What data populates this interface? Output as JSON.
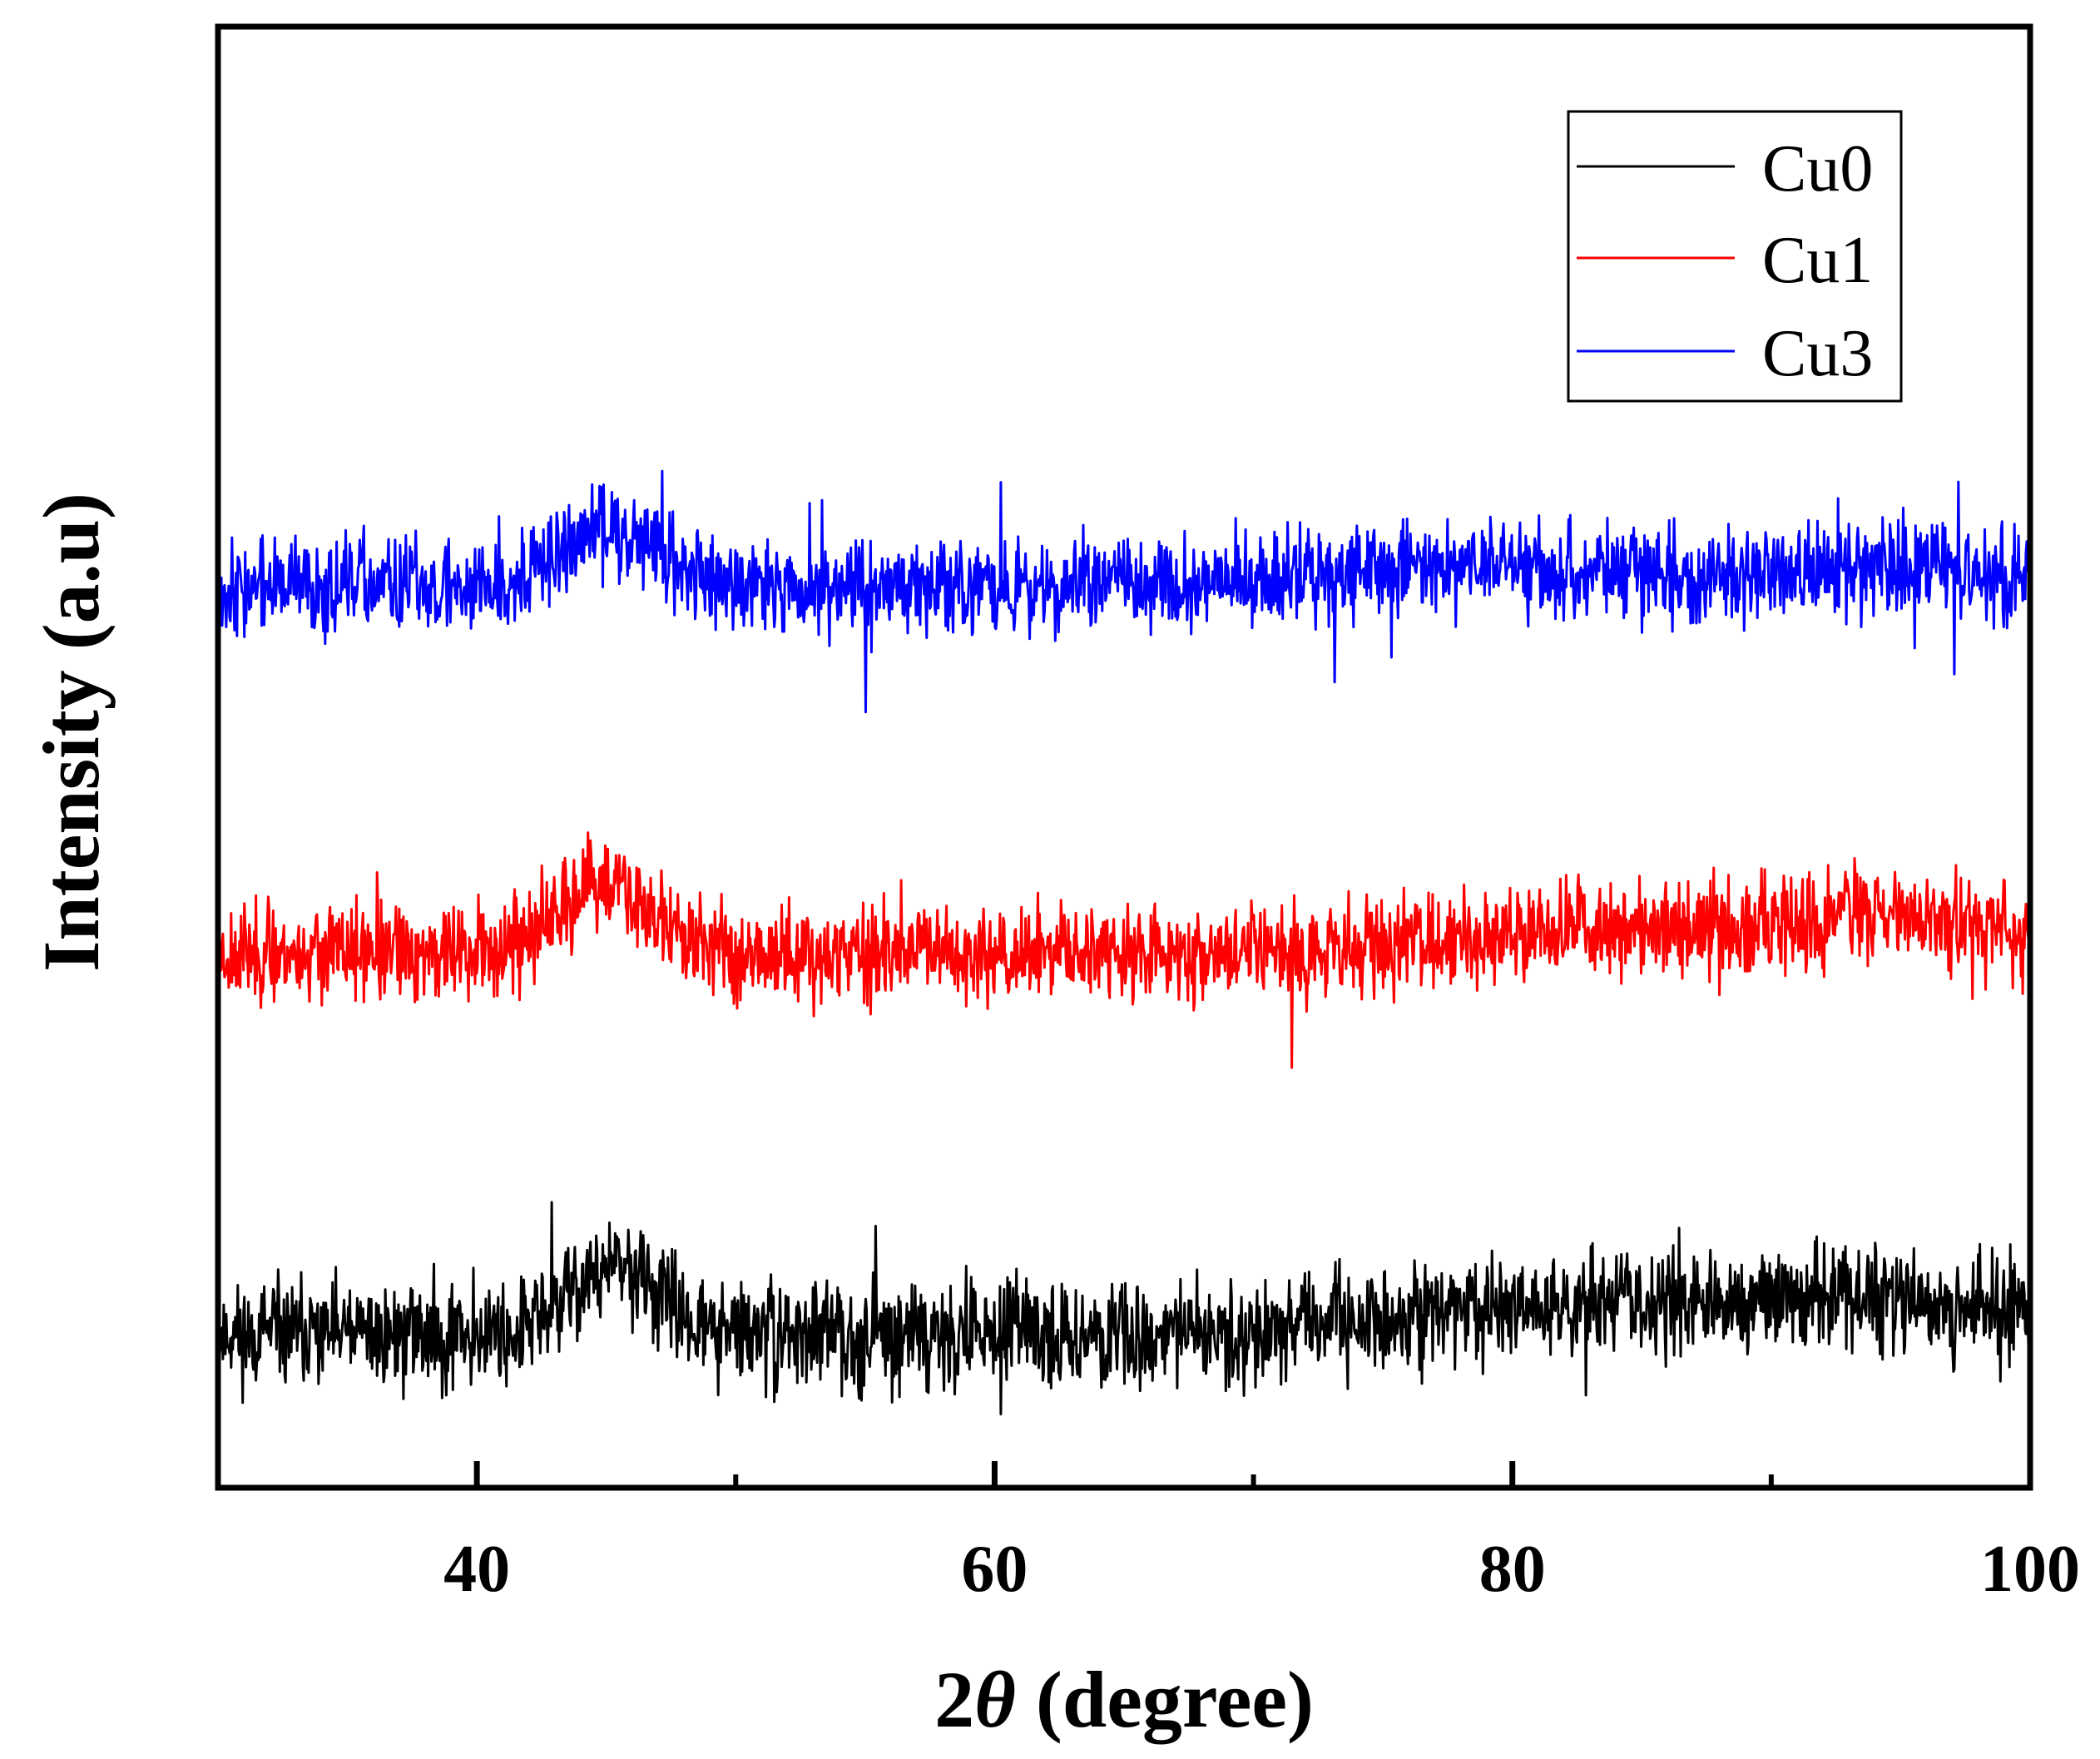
{
  "chart_data": {
    "type": "line",
    "title": "",
    "xlabel": {
      "prefix": "2",
      "symbol": "θ",
      "suffix": " (degree)"
    },
    "ylabel": "Intensity (a.u)",
    "xlim": [
      30,
      100
    ],
    "ylim": [
      0,
      1
    ],
    "x_ticks": [
      {
        "value": 40,
        "label": "40"
      },
      {
        "value": 60,
        "label": "60"
      },
      {
        "value": 80,
        "label": "80"
      },
      {
        "value": 100,
        "label": "100"
      }
    ],
    "x_minor_ticks": [
      50,
      70,
      90
    ],
    "y_ticks_visible": false,
    "grid": false,
    "legend_position": "top-right",
    "series": [
      {
        "name": "Cu0",
        "color": "#000000",
        "baseline": 0.105,
        "noise": 0.032,
        "features": [
          {
            "center": 45.3,
            "width": 2.4,
            "height": 0.045
          },
          {
            "center": 82.5,
            "width": 9.0,
            "height": 0.02
          },
          {
            "center": 95.0,
            "width": 8.0,
            "height": 0.02
          }
        ],
        "seed": 11
      },
      {
        "name": "Cu1",
        "color": "#ff0000",
        "baseline": 0.366,
        "noise": 0.03,
        "features": [
          {
            "center": 45.0,
            "width": 2.6,
            "height": 0.045
          },
          {
            "center": 85.0,
            "width": 9.0,
            "height": 0.018
          },
          {
            "center": 96.0,
            "width": 6.0,
            "height": 0.02
          }
        ],
        "seed": 23
      },
      {
        "name": "Cu3",
        "color": "#0000ff",
        "baseline": 0.617,
        "noise": 0.03,
        "features": [
          {
            "center": 45.2,
            "width": 2.6,
            "height": 0.04
          },
          {
            "center": 78.0,
            "width": 7.0,
            "height": 0.015
          },
          {
            "center": 95.0,
            "width": 7.0,
            "height": 0.015
          }
        ],
        "seed": 37
      }
    ]
  }
}
